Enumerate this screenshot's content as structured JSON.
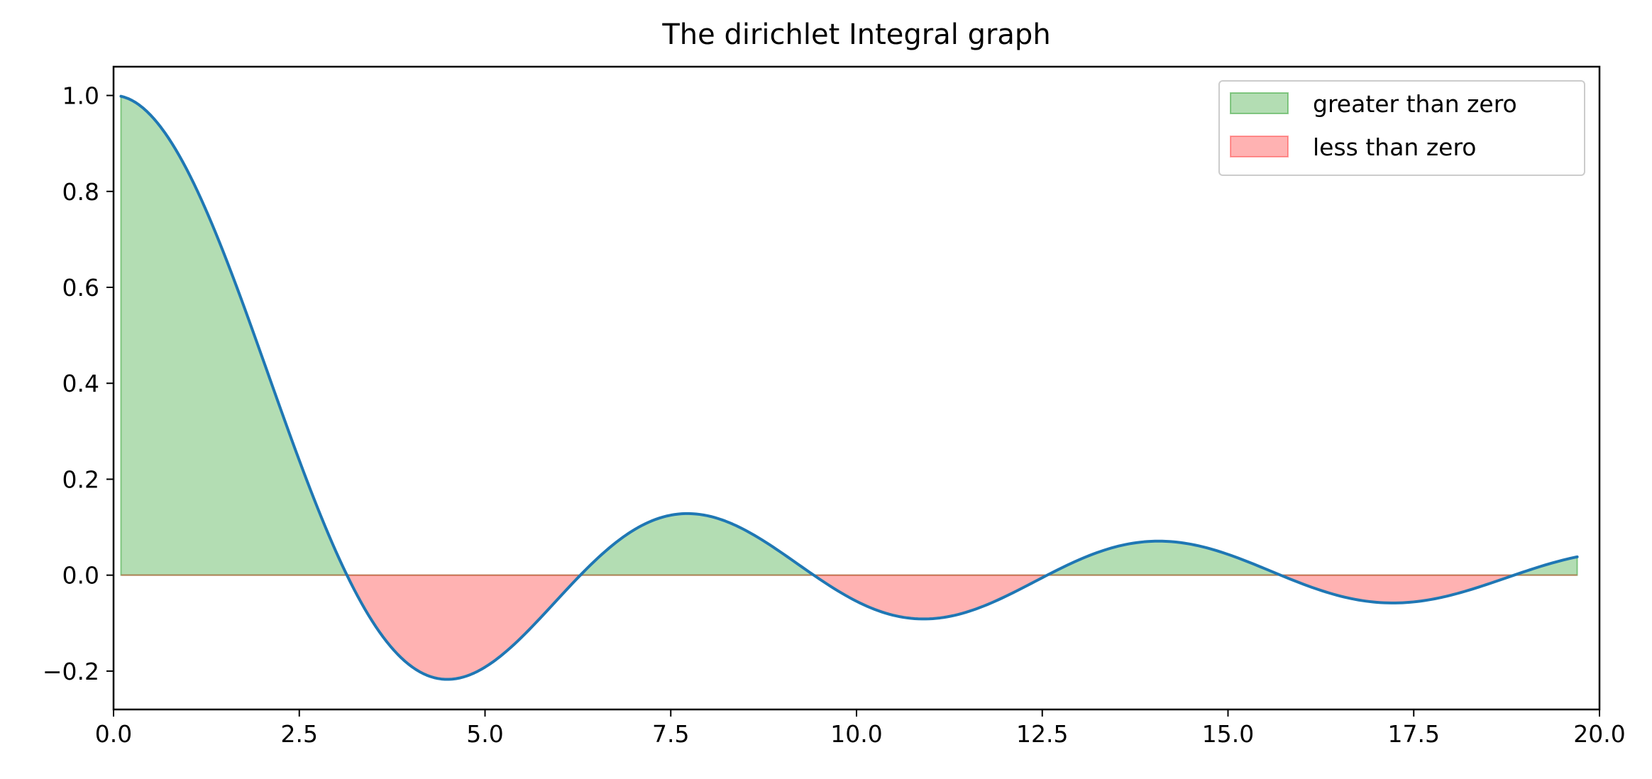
{
  "chart_data": {
    "type": "area",
    "title": "The dirichlet Integral graph",
    "xlabel": "",
    "ylabel": "",
    "xlim": [
      0.0,
      20.0
    ],
    "ylim": [
      -0.28,
      1.06
    ],
    "x_ticks": [
      "0.0",
      "2.5",
      "5.0",
      "7.5",
      "10.0",
      "12.5",
      "15.0",
      "17.5",
      "20.0"
    ],
    "y_ticks": [
      "−0.2",
      "0.0",
      "0.2",
      "0.4",
      "0.6",
      "0.8",
      "1.0"
    ],
    "x_tick_values": [
      0,
      2.5,
      5,
      7.5,
      10,
      12.5,
      15,
      17.5,
      20
    ],
    "y_tick_values": [
      -0.2,
      0,
      0.2,
      0.4,
      0.6,
      0.8,
      1.0
    ],
    "grid": false,
    "legend": {
      "placement": "top-right",
      "entries": [
        {
          "label": "greater than zero",
          "color": "#2ca02c"
        },
        {
          "label": "less than zero",
          "color": "#ff0000"
        }
      ]
    },
    "series": [
      {
        "style": "line",
        "color": "#1f77b4",
        "function": "sin(x)/x",
        "x_start": 0.1,
        "x_end": 19.7
      }
    ],
    "fills": [
      {
        "name": "greater than zero",
        "color": "#2ca02c",
        "alpha": 0.36,
        "where": "y > 0"
      },
      {
        "name": "less than zero",
        "color": "#ff0000",
        "alpha": 0.3,
        "where": "y < 0"
      }
    ]
  }
}
